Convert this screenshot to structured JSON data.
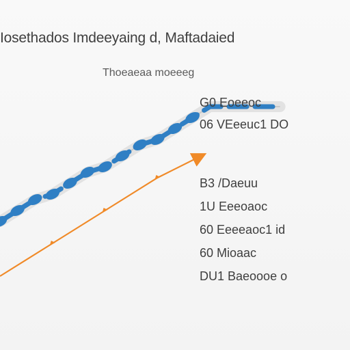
{
  "chart_data": {
    "type": "line",
    "title": "Iosethados Imdeeyaing d, Maftadaied",
    "subtitle": "Thoeaeaa moeeeg",
    "series": [
      {
        "name": "",
        "style": "dashed-beaded",
        "color": "#2f7fc4",
        "values": [
          {
            "x": 0,
            "y": 12
          },
          {
            "x": 1,
            "y": 14
          },
          {
            "x": 2,
            "y": 16
          },
          {
            "x": 3,
            "y": 17
          },
          {
            "x": 4,
            "y": 19
          },
          {
            "x": 5,
            "y": 21
          },
          {
            "x": 6,
            "y": 22
          },
          {
            "x": 7,
            "y": 24
          },
          {
            "x": 8,
            "y": 26
          },
          {
            "x": 9,
            "y": 27
          },
          {
            "x": 10,
            "y": 29
          },
          {
            "x": 11,
            "y": 31
          },
          {
            "x": 12,
            "y": 33
          },
          {
            "x": 13,
            "y": 33
          },
          {
            "x": 14,
            "y": 33
          },
          {
            "x": 15,
            "y": 33
          },
          {
            "x": 16,
            "y": 33
          }
        ]
      },
      {
        "name": "",
        "style": "arrow",
        "color": "#f08a28",
        "values": [
          {
            "x": 0,
            "y": 2
          },
          {
            "x": 3,
            "y": 8
          },
          {
            "x": 6,
            "y": 14
          },
          {
            "x": 9,
            "y": 20
          },
          {
            "x": 11.5,
            "y": 24
          }
        ]
      }
    ],
    "xlim": [
      0,
      20
    ],
    "ylim": [
      0,
      40
    ],
    "grid": false,
    "legend_placement": "right",
    "annotations": [
      "G0 Eoeeoc",
      "06 VEeeuc1 DO",
      "B3 /Daeuu",
      "1U Eeeoaoc",
      "60 Eeeeaoc1 id",
      "60 Mioaac",
      "DU1 Baeoooe o"
    ]
  }
}
